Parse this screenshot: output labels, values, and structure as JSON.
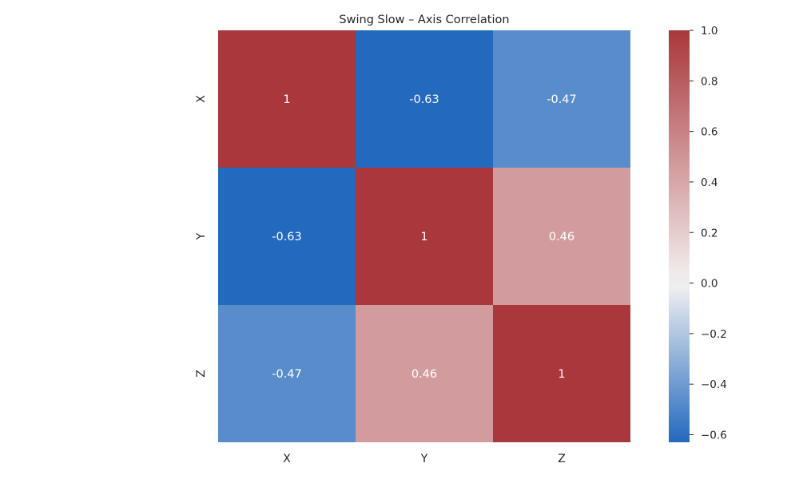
{
  "chart_data": {
    "type": "heatmap",
    "title": "Swing Slow – Axis Correlation",
    "xlabel": "",
    "ylabel": "",
    "x_categories": [
      "X",
      "Y",
      "Z"
    ],
    "y_categories": [
      "X",
      "Y",
      "Z"
    ],
    "values": [
      [
        1,
        -0.63,
        -0.47
      ],
      [
        -0.63,
        1,
        0.46
      ],
      [
        -0.47,
        0.46,
        1
      ]
    ],
    "annotations": [
      [
        "1",
        "-0.63",
        "-0.47"
      ],
      [
        "-0.63",
        "1",
        "0.46"
      ],
      [
        "-0.47",
        "0.46",
        "1"
      ]
    ],
    "colorbar": {
      "range": [
        -0.63,
        1.0
      ],
      "ticks": [
        1.0,
        0.8,
        0.6,
        0.4,
        0.2,
        0.0,
        -0.2,
        -0.4,
        -0.6
      ],
      "tick_labels": [
        "1.0",
        "0.8",
        "0.6",
        "0.4",
        "0.2",
        "0.0",
        "−0.2",
        "−0.4",
        "−0.6"
      ]
    },
    "colormap": {
      "name": "vlag",
      "low": "#2369bd",
      "mid": "#f4f2f2",
      "high": "#a9373b"
    },
    "grid": false,
    "legend": "colorbar-right"
  }
}
